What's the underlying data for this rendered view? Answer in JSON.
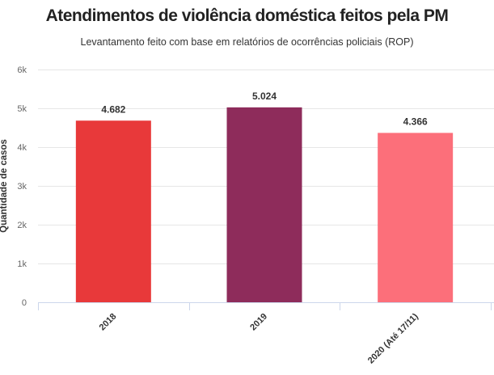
{
  "chart_data": {
    "type": "bar",
    "title": "Atendimentos de violência doméstica feitos pela PM",
    "subtitle": "Levantamento feito com base em relatórios de ocorrências policiais (ROP)",
    "xlabel": "",
    "ylabel": "Quantidade de casos",
    "categories": [
      "2018",
      "2019",
      "2020 (Até 17/11)"
    ],
    "values": [
      4682,
      5024,
      4366
    ],
    "value_labels": [
      "4.682",
      "5.024",
      "4.366"
    ],
    "bar_colors": [
      "#e8393a",
      "#8e2c5b",
      "#fc6f7a"
    ],
    "ylim": [
      0,
      6000
    ],
    "yticks": [
      0,
      1000,
      2000,
      3000,
      4000,
      5000,
      6000
    ],
    "ytick_labels": [
      "0",
      "1k",
      "2k",
      "3k",
      "4k",
      "5k",
      "6k"
    ],
    "grid": true,
    "legend": "none"
  }
}
